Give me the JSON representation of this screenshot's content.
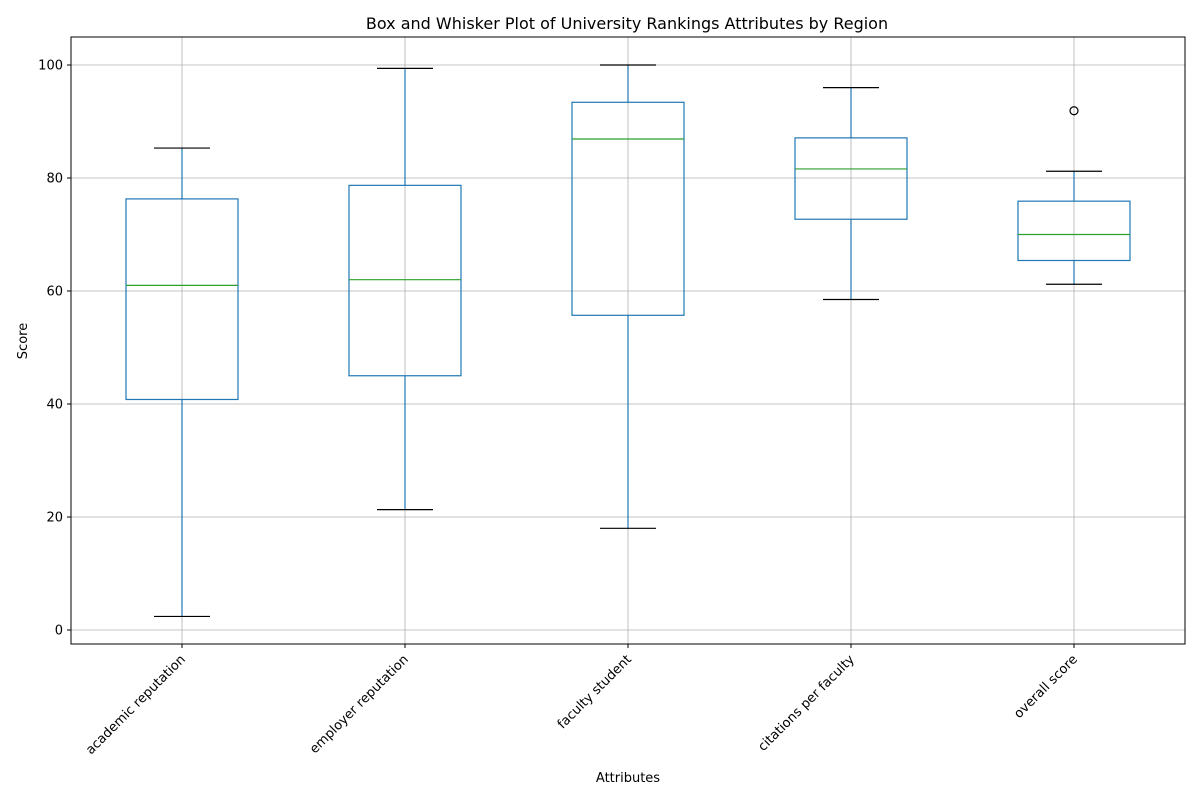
{
  "chart_data": {
    "type": "box",
    "title": "Box and Whisker Plot of University Rankings Attributes by Region",
    "xlabel": "Attributes",
    "ylabel": "Score",
    "ylim": [
      -2.5,
      105
    ],
    "yticks": [
      0,
      20,
      40,
      60,
      80,
      100
    ],
    "grid": true,
    "categories": [
      "academic reputation",
      "employer reputation",
      "faculty student",
      "citations per faculty",
      "overall score"
    ],
    "boxes": [
      {
        "whisker_low": 2.4,
        "q1": 40.8,
        "median": 61.0,
        "q3": 76.3,
        "whisker_high": 85.3,
        "outliers": []
      },
      {
        "whisker_low": 21.3,
        "q1": 45.0,
        "median": 62.0,
        "q3": 78.7,
        "whisker_high": 99.4,
        "outliers": []
      },
      {
        "whisker_low": 18.0,
        "q1": 55.7,
        "median": 86.9,
        "q3": 93.4,
        "whisker_high": 100.0,
        "outliers": []
      },
      {
        "whisker_low": 58.5,
        "q1": 72.7,
        "median": 81.6,
        "q3": 87.1,
        "whisker_high": 96.0,
        "outliers": []
      },
      {
        "whisker_low": 61.2,
        "q1": 65.4,
        "median": 70.0,
        "q3": 75.9,
        "whisker_high": 81.2,
        "outliers": [
          91.9
        ]
      }
    ],
    "colors": {
      "box": "#1f77b4",
      "median": "#2ca02c",
      "whisker_cap": "#000000",
      "grid": "#b0b0b0",
      "axis": "#000000"
    }
  }
}
